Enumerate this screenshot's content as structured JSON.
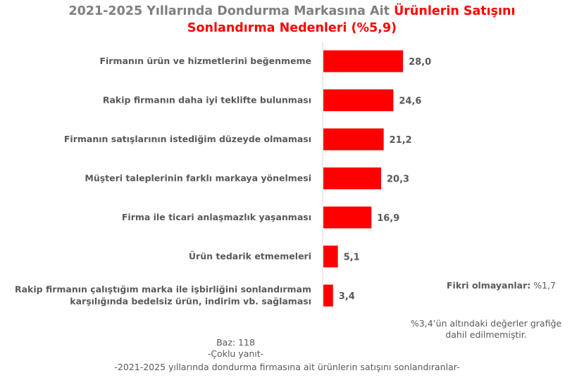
{
  "title": {
    "part1": "2021-2025 Yıllarında Dondurma Markasına Ait ",
    "part2": "Ürünlerin Satışını",
    "line2": "Sonlandırma Nedenleri (%5,9)"
  },
  "chart_data": {
    "type": "bar",
    "orientation": "horizontal",
    "categories": [
      [
        "Firmanın ürün ve hizmetlerini beğenmeme"
      ],
      [
        "Rakip firmanın daha iyi teklifte bulunması"
      ],
      [
        "Firmanın satışlarının istediğim düzeyde olmaması"
      ],
      [
        "Müşteri taleplerinin farklı markaya yönelmesi"
      ],
      [
        "Firma ile ticari anlaşmazlık yaşanması"
      ],
      [
        "Ürün tedarik etmemeleri"
      ],
      [
        "Rakip firmanın çalıştığım marka ile işbirliğini sonlandırmam",
        "karşılığında bedelsiz ürün, indirim vb. sağlaması"
      ]
    ],
    "values": [
      28.0,
      24.6,
      21.2,
      20.3,
      16.9,
      5.1,
      3.4
    ],
    "value_labels": [
      "28,0",
      "24,6",
      "21,2",
      "20,3",
      "16,9",
      "5,1",
      "3,4"
    ],
    "bar_color": "#ff0000",
    "grid": false,
    "legend": "none"
  },
  "notes": {
    "no_opinion_label": "Fikri olmayanlar:",
    "no_opinion_value": " %1,7",
    "exclusion_line1": "%3,4’ün altındaki değerler grafiğe",
    "exclusion_line2": "dahil edilmemiştir.",
    "base": "Baz: 118",
    "multiple": "-Çoklu yanıt-",
    "population": "-2021-2025 yıllarında dondurma firmasına ait ürünlerin satışını sonlandıranlar-"
  },
  "colors": {
    "title_grey": "#7f7f7f",
    "title_red": "#ff0000",
    "text": "#595959"
  }
}
